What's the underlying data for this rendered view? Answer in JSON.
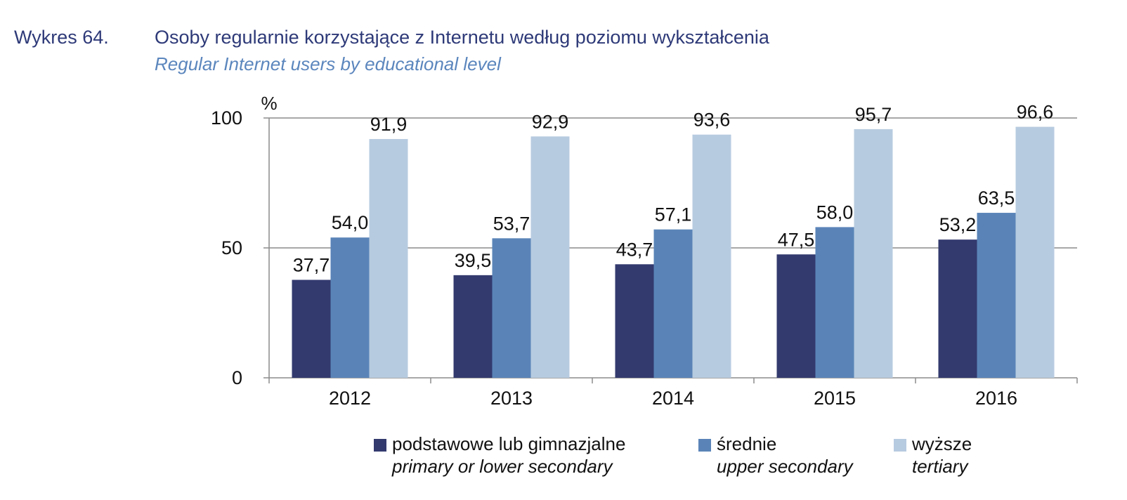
{
  "header": {
    "figure_label": "Wykres 64.",
    "title_pl": "Osoby regularnie korzystające z Internetu według poziomu wykształcenia",
    "title_en": "Regular Internet users by educational level"
  },
  "chart_data": {
    "type": "bar",
    "title": "Osoby regularnie korzystające z Internetu według poziomu wykształcenia",
    "subtitle": "Regular Internet users by educational level",
    "unit_label": "%",
    "xlabel": "",
    "ylabel": "%",
    "ylim": [
      0,
      100
    ],
    "yticks": [
      0,
      50,
      100
    ],
    "grid": true,
    "legend_position": "bottom",
    "categories": [
      "2012",
      "2013",
      "2014",
      "2015",
      "2016"
    ],
    "series": [
      {
        "name": "podstawowe lub gimnazjalne",
        "name_en": "primary or lower secondary",
        "color": "#333a6e",
        "values": [
          37.7,
          39.5,
          43.7,
          47.5,
          53.2
        ],
        "labels": [
          "37,7",
          "39,5",
          "43,7",
          "47,5",
          "53,2"
        ]
      },
      {
        "name": "średnie",
        "name_en": "upper secondary",
        "color": "#5a84b8",
        "values": [
          54.0,
          53.7,
          57.1,
          58.0,
          63.5
        ],
        "labels": [
          "54,0",
          "53,7",
          "57,1",
          "58,0",
          "63,5"
        ]
      },
      {
        "name": "wyższe",
        "name_en": "tertiary",
        "color": "#b7cbe0",
        "values": [
          91.9,
          92.9,
          93.6,
          95.7,
          96.6
        ],
        "labels": [
          "91,9",
          "92,9",
          "93,6",
          "95,7",
          "96,6"
        ]
      }
    ]
  }
}
